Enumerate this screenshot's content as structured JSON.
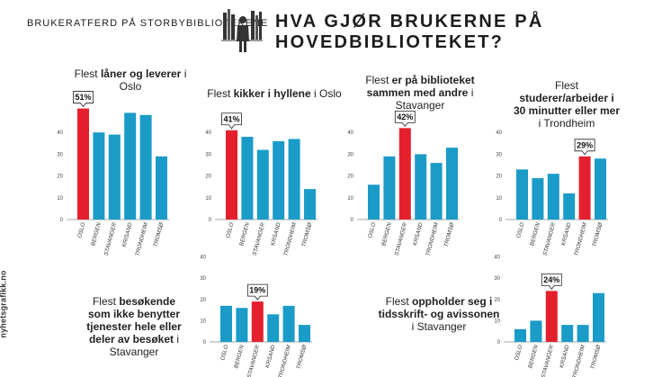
{
  "header": {
    "left": "BRUKERATFERD PÅ STORBYBIBLIOTEKENE",
    "right": "HVA GJØR BRUKERNE PÅ HOVEDBIBLIOTEKET?"
  },
  "credit": "nyhetsgrafikk.no",
  "colors": {
    "bar": "#1a9bc8",
    "highlight": "#e5202e",
    "axis": "#888888"
  },
  "chart_data": [
    {
      "type": "bar",
      "title_parts": [
        "Flest ",
        "låner og leverer",
        " i Oslo"
      ],
      "categories": [
        "OSLO",
        "BERGEN",
        "STAVANGER",
        "KRISAND",
        "TRONDHEIM",
        "TROMSØ"
      ],
      "values": [
        51,
        40,
        39,
        49,
        48,
        29
      ],
      "highlight_index": 0,
      "callout": "51%",
      "yticks": [
        0,
        10,
        20,
        30,
        40
      ],
      "ylim": [
        0,
        52
      ]
    },
    {
      "type": "bar",
      "title_parts": [
        "Flest ",
        "kikker i hyllene",
        " i Oslo"
      ],
      "categories": [
        "OSLO",
        "BERGEN",
        "STAVANGER",
        "KRSAND",
        "TRONDHEIM",
        "TROMSØ"
      ],
      "values": [
        41,
        38,
        32,
        36,
        37,
        14
      ],
      "highlight_index": 0,
      "callout": "41%",
      "yticks": [
        0,
        10,
        20,
        30,
        40
      ],
      "ylim": [
        0,
        52
      ]
    },
    {
      "type": "bar",
      "title_parts": [
        "Flest ",
        "er på biblioteket sammen med andre",
        " i Stavanger"
      ],
      "categories": [
        "OSLO",
        "BERGEN",
        "STAVANGER",
        "KRSAND",
        "TRONDHEIM",
        "TROMSØ"
      ],
      "values": [
        16,
        29,
        42,
        30,
        26,
        33
      ],
      "highlight_index": 2,
      "callout": "42%",
      "yticks": [
        0,
        10,
        20,
        30,
        40
      ],
      "ylim": [
        0,
        52
      ]
    },
    {
      "type": "bar",
      "title_parts": [
        "Flest ",
        "studerer/arbeider i 30 minutter eller mer",
        " i Trondheim"
      ],
      "categories": [
        "OSLO",
        "BERGEN",
        "STAVANGER",
        "KRSAND",
        "TRONDHEIM",
        "TROMSØ"
      ],
      "values": [
        23,
        19,
        21,
        12,
        29,
        28
      ],
      "highlight_index": 4,
      "callout": "29%",
      "yticks": [
        0,
        10,
        20,
        30,
        40
      ],
      "ylim": [
        0,
        52
      ]
    },
    {
      "type": "bar",
      "title_parts": [
        "Flest ",
        "besøkende som ikke benytter tjenester hele eller deler av besøket",
        " i Stavanger"
      ],
      "categories": [
        "OSLO",
        "BERGEN",
        "STAVANGER",
        "KRSAND",
        "TRONDHEIM",
        "TROMSØ"
      ],
      "values": [
        17,
        16,
        19,
        13,
        17,
        8
      ],
      "highlight_index": 2,
      "callout": "19%",
      "yticks": [
        0,
        10,
        20,
        30,
        40
      ],
      "ylim": [
        0,
        40
      ]
    },
    {
      "type": "bar",
      "title_parts": [
        "Flest ",
        "oppholder seg i tidsskrift- og avissonen",
        " i Stavanger"
      ],
      "categories": [
        "OSLO",
        "BERGEN",
        "STAVANGER",
        "KRSAND",
        "TRONDHEIM",
        "TROMSØ"
      ],
      "values": [
        6,
        10,
        24,
        8,
        8,
        23
      ],
      "highlight_index": 2,
      "callout": "24%",
      "yticks": [
        0,
        10,
        20,
        30,
        40
      ],
      "ylim": [
        0,
        40
      ]
    }
  ]
}
